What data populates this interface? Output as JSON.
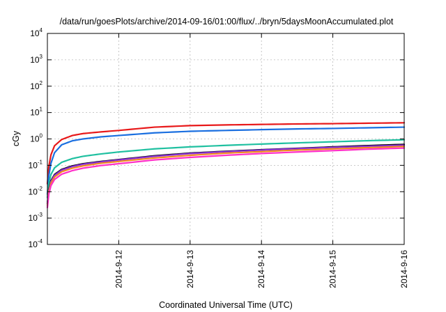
{
  "chart_data": {
    "type": "line",
    "title": "/data/run/goesPlots/archive/2014-09-16/01:00/flux/../bryn/5daysMoonAccumulated.plot",
    "xlabel": "Coordinated Universal Time (UTC)",
    "ylabel": "cGy",
    "yscale": "log",
    "ylim": [
      0.0001,
      10000
    ],
    "xlim": [
      "2014-09-11 01:00",
      "2014-09-16 01:00"
    ],
    "grid": true,
    "x_tick_labels": [
      "2014-9-12",
      "2014-9-13",
      "2014-9-14",
      "2014-9-15",
      "2014-9-16"
    ],
    "x_ticks_days": [
      1,
      2,
      3,
      4,
      5
    ],
    "y_ticks": [
      {
        "base": "10",
        "exp": "-4"
      },
      {
        "base": "10",
        "exp": "-3"
      },
      {
        "base": "10",
        "exp": "-2"
      },
      {
        "base": "10",
        "exp": "-1"
      },
      {
        "base": "10",
        "exp": "0"
      },
      {
        "base": "10",
        "exp": "1"
      },
      {
        "base": "10",
        "exp": "2"
      },
      {
        "base": "10",
        "exp": "3"
      },
      {
        "base": "10",
        "exp": "4"
      }
    ],
    "x_days": [
      0,
      0.02,
      0.05,
      0.1,
      0.2,
      0.35,
      0.5,
      0.75,
      1,
      1.5,
      2,
      2.5,
      3,
      3.5,
      4,
      4.5,
      5
    ],
    "series": [
      {
        "color": "#e8191a",
        "values": [
          0.02,
          0.09,
          0.25,
          0.55,
          0.95,
          1.35,
          1.6,
          1.85,
          2.1,
          2.8,
          3.2,
          3.4,
          3.55,
          3.7,
          3.8,
          3.95,
          4.1
        ]
      },
      {
        "color": "#1a6fe0",
        "values": [
          0.008,
          0.04,
          0.12,
          0.3,
          0.6,
          0.85,
          1.0,
          1.2,
          1.35,
          1.7,
          1.95,
          2.1,
          2.25,
          2.4,
          2.5,
          2.65,
          2.8
        ]
      },
      {
        "color": "#1fc0a0",
        "values": [
          0.006,
          0.02,
          0.045,
          0.08,
          0.13,
          0.18,
          0.22,
          0.27,
          0.32,
          0.42,
          0.5,
          0.57,
          0.64,
          0.71,
          0.78,
          0.86,
          0.93
        ]
      },
      {
        "color": "#000000",
        "values": [
          0.0035,
          0.012,
          0.026,
          0.045,
          0.07,
          0.095,
          0.115,
          0.14,
          0.165,
          0.23,
          0.29,
          0.34,
          0.39,
          0.44,
          0.5,
          0.56,
          0.62
        ]
      },
      {
        "color": "#8a2fd6",
        "values": [
          0.0035,
          0.011,
          0.024,
          0.042,
          0.066,
          0.09,
          0.11,
          0.135,
          0.16,
          0.22,
          0.28,
          0.33,
          0.38,
          0.43,
          0.48,
          0.53,
          0.58
        ]
      },
      {
        "color": "#f08a1f",
        "values": [
          0.003,
          0.01,
          0.021,
          0.036,
          0.057,
          0.078,
          0.095,
          0.12,
          0.14,
          0.19,
          0.24,
          0.29,
          0.33,
          0.38,
          0.42,
          0.47,
          0.52
        ]
      },
      {
        "color": "#ff2fc8",
        "values": [
          0.0025,
          0.008,
          0.017,
          0.029,
          0.046,
          0.063,
          0.078,
          0.098,
          0.115,
          0.16,
          0.2,
          0.24,
          0.28,
          0.32,
          0.36,
          0.41,
          0.45
        ]
      }
    ]
  }
}
